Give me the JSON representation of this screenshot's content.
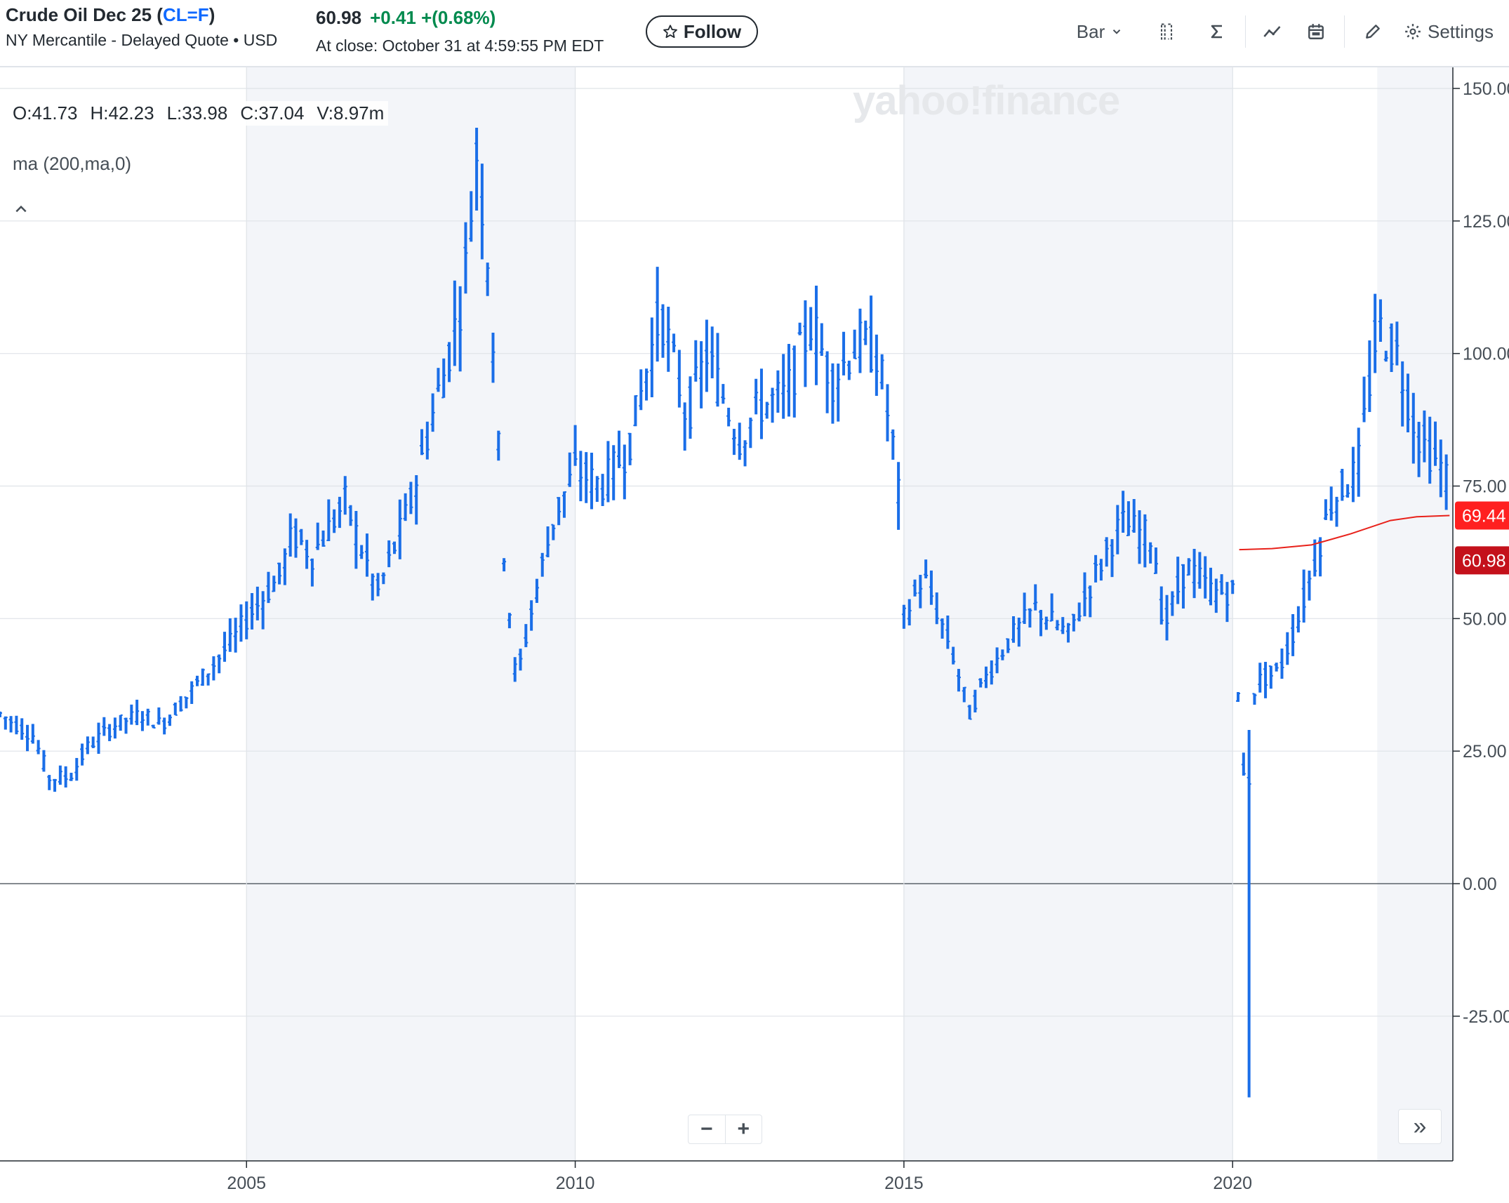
{
  "header": {
    "title_prefix": "Crude Oil Dec 25 (",
    "symbol": "CL=F",
    "title_suffix": ")",
    "subtitle": "NY Mercantile - Delayed Quote • USD",
    "price": "60.98",
    "change": "+0.41 +(0.68%)",
    "close_time": "At close: October 31 at 4:59:55 PM EDT",
    "follow_label": "Follow",
    "star_icon": "star-icon"
  },
  "toolbar": {
    "chart_type": "Bar",
    "settings_label": "Settings",
    "icons": [
      "compare-icon",
      "indicators-icon",
      "events-icon",
      "date-range-icon",
      "draw-icon",
      "gear-icon"
    ]
  },
  "legend": {
    "open": "O:41.73",
    "high": "H:42.23",
    "low": "L:33.98",
    "close": "C:37.04",
    "volume": "V:8.97m",
    "indicator": "ma (200,ma,0)"
  },
  "watermark": "yahoo!finance",
  "zoom": {
    "minus": "−",
    "plus": "+"
  },
  "scroll_icon": "»",
  "colors": {
    "bar": "#1a6ee8",
    "ma": "#e8221b",
    "ma_tag": "#ff2020",
    "price_tag": "#c4111b",
    "grid": "#dfe3e8",
    "shade": "#f3f5f9"
  },
  "chart_data": {
    "type": "ohlc-bar",
    "interval": "monthly",
    "x_ticks": [
      2005,
      2010,
      2015,
      2020
    ],
    "y_ticks": [
      "150.00",
      "125.00",
      "100.00",
      "75.00",
      "50.00",
      "25.00",
      "0.00",
      "-25.00"
    ],
    "ylim": [
      -47,
      150
    ],
    "x_range": [
      2001.25,
      2023.35
    ],
    "shaded_years": [
      [
        2005,
        2010
      ],
      [
        2015,
        2020
      ],
      [
        2022.2,
        2023.35
      ]
    ],
    "anchors": [
      [
        2001.25,
        32
      ],
      [
        2001.75,
        28
      ],
      [
        2002.0,
        20
      ],
      [
        2002.3,
        20
      ],
      [
        2002.6,
        26
      ],
      [
        2003.0,
        30
      ],
      [
        2003.4,
        32
      ],
      [
        2003.7,
        30
      ],
      [
        2004.0,
        34
      ],
      [
        2004.4,
        40
      ],
      [
        2004.8,
        46
      ],
      [
        2005.0,
        50
      ],
      [
        2005.5,
        58
      ],
      [
        2005.7,
        66
      ],
      [
        2006.0,
        62
      ],
      [
        2006.5,
        72
      ],
      [
        2006.9,
        58
      ],
      [
        2007.0,
        55
      ],
      [
        2007.5,
        72
      ],
      [
        2007.9,
        92
      ],
      [
        2008.0,
        96
      ],
      [
        2008.3,
        112
      ],
      [
        2008.5,
        138
      ],
      [
        2008.7,
        115
      ],
      [
        2008.9,
        65
      ],
      [
        2009.1,
        38
      ],
      [
        2009.4,
        55
      ],
      [
        2009.7,
        70
      ],
      [
        2010.0,
        78
      ],
      [
        2010.4,
        75
      ],
      [
        2010.8,
        82
      ],
      [
        2011.3,
        108
      ],
      [
        2011.7,
        88
      ],
      [
        2012.0,
        100
      ],
      [
        2012.5,
        84
      ],
      [
        2012.8,
        90
      ],
      [
        2013.2,
        92
      ],
      [
        2013.6,
        106
      ],
      [
        2013.9,
        95
      ],
      [
        2014.3,
        102
      ],
      [
        2014.6,
        100
      ],
      [
        2014.9,
        78
      ],
      [
        2015.0,
        50
      ],
      [
        2015.3,
        58
      ],
      [
        2015.7,
        45
      ],
      [
        2016.0,
        32
      ],
      [
        2016.2,
        38
      ],
      [
        2016.6,
        46
      ],
      [
        2017.0,
        52
      ],
      [
        2017.5,
        47
      ],
      [
        2017.9,
        58
      ],
      [
        2018.3,
        68
      ],
      [
        2018.8,
        65
      ],
      [
        2018.95,
        48
      ],
      [
        2019.3,
        60
      ],
      [
        2019.7,
        55
      ],
      [
        2020.0,
        55
      ],
      [
        2020.15,
        20
      ],
      [
        2020.35,
        38
      ],
      [
        2020.7,
        40
      ],
      [
        2021.0,
        50
      ],
      [
        2021.5,
        72
      ],
      [
        2021.9,
        78
      ],
      [
        2022.2,
        105
      ],
      [
        2022.5,
        100
      ],
      [
        2022.8,
        85
      ],
      [
        2023.3,
        76
      ]
    ],
    "special_bars": [
      {
        "x": 2020.25,
        "open": 20,
        "high": 29,
        "low": -40.32,
        "close": 18.8
      }
    ],
    "moving_average": {
      "label": "ma (200,ma,0)",
      "points": [
        [
          2020.1,
          63.0
        ],
        [
          2020.6,
          63.2
        ],
        [
          2021.2,
          63.9
        ],
        [
          2021.8,
          66.0
        ],
        [
          2022.4,
          68.5
        ],
        [
          2022.8,
          69.2
        ],
        [
          2023.3,
          69.44
        ]
      ],
      "last_value": "69.44"
    },
    "last_price": "60.98"
  }
}
